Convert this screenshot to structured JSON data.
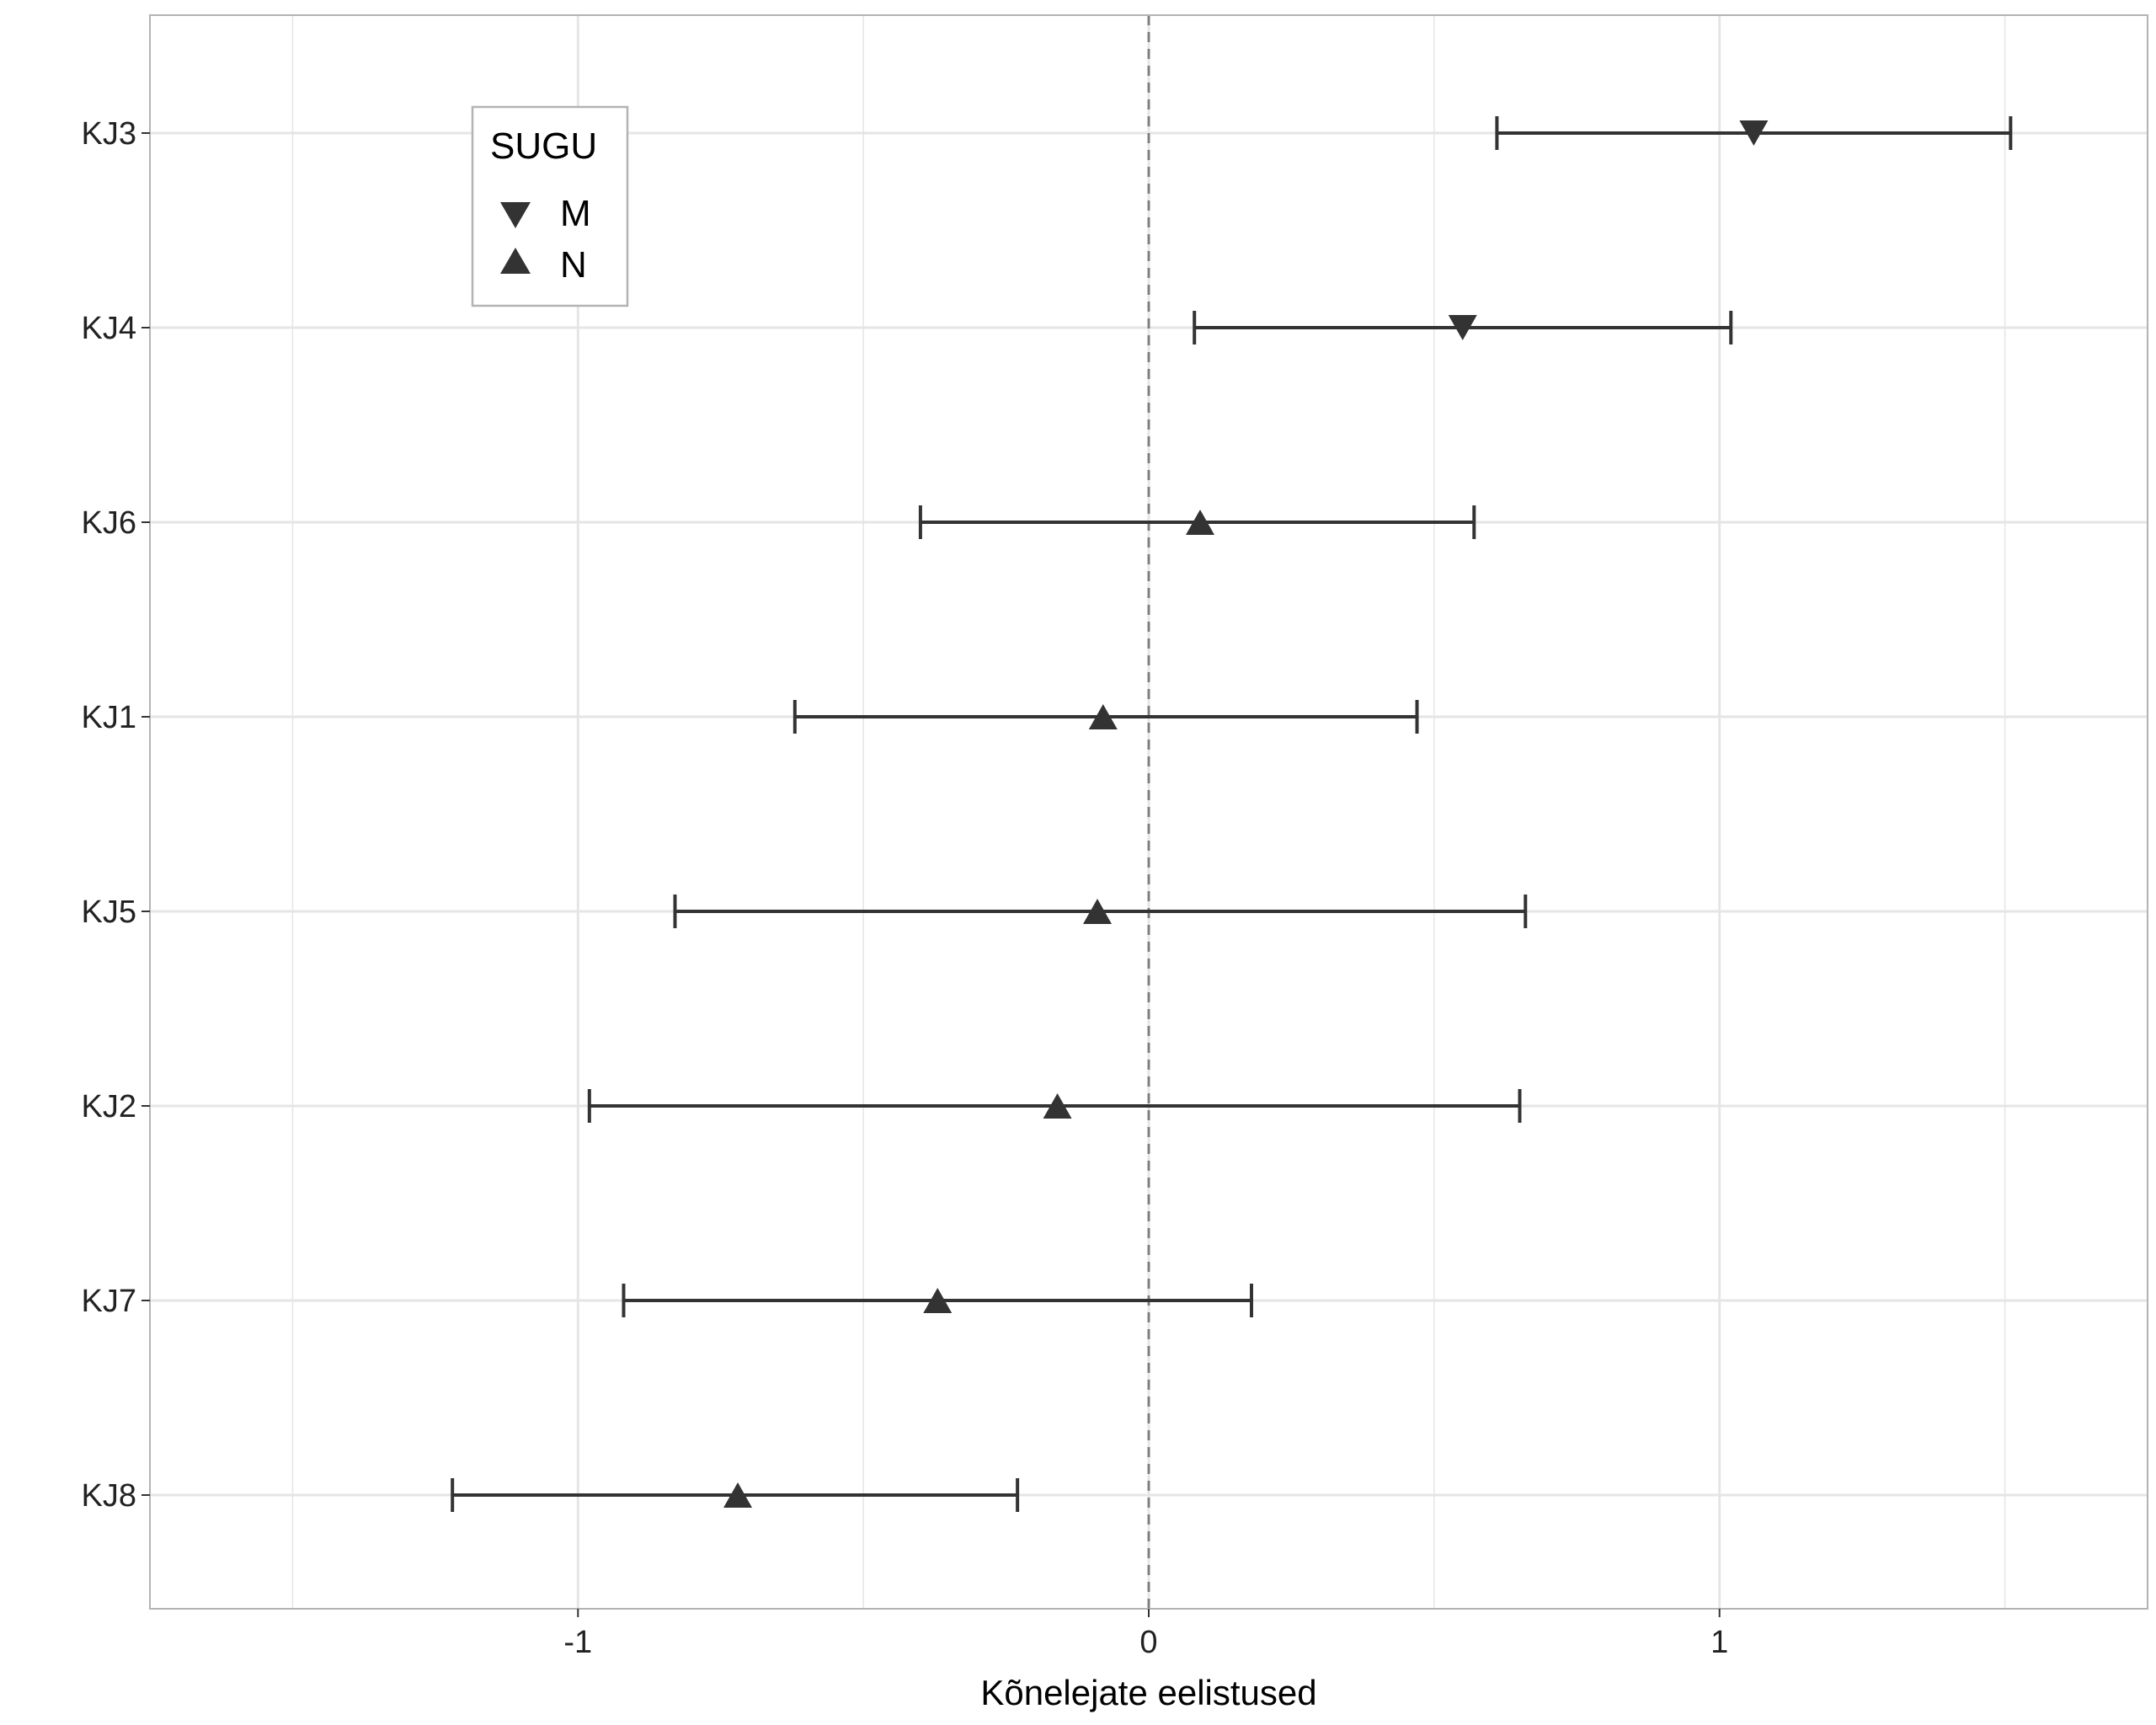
{
  "chart_data": {
    "type": "scatter",
    "subtype": "point-with-horizontal-error-bars",
    "title": "",
    "xlabel": "Kõnelejate eelistused",
    "ylabel": "",
    "xlim": [
      -1.75,
      1.75
    ],
    "x_ticks": [
      {
        "value": -1,
        "label": "-1"
      },
      {
        "value": 0,
        "label": "0"
      },
      {
        "value": 1,
        "label": "1"
      }
    ],
    "x_minor_gridlines": [
      -1.5,
      -0.5,
      0.5,
      1.5
    ],
    "reference_line": {
      "x": 0,
      "style": "dashed",
      "color": "#7f7f7f"
    },
    "grid": true,
    "categories": [
      "KJ3",
      "KJ4",
      "KJ6",
      "KJ1",
      "KJ5",
      "KJ2",
      "KJ7",
      "KJ8"
    ],
    "points": [
      {
        "label": "KJ3",
        "estimate": 1.06,
        "lower": 0.61,
        "upper": 1.51,
        "group": "M"
      },
      {
        "label": "KJ4",
        "estimate": 0.55,
        "lower": 0.08,
        "upper": 1.02,
        "group": "M"
      },
      {
        "label": "KJ6",
        "estimate": 0.09,
        "lower": -0.4,
        "upper": 0.57,
        "group": "N"
      },
      {
        "label": "KJ1",
        "estimate": -0.08,
        "lower": -0.62,
        "upper": 0.47,
        "group": "N"
      },
      {
        "label": "KJ5",
        "estimate": -0.09,
        "lower": -0.83,
        "upper": 0.66,
        "group": "N"
      },
      {
        "label": "KJ2",
        "estimate": -0.16,
        "lower": -0.98,
        "upper": 0.65,
        "group": "N"
      },
      {
        "label": "KJ7",
        "estimate": -0.37,
        "lower": -0.92,
        "upper": 0.18,
        "group": "N"
      },
      {
        "label": "KJ8",
        "estimate": -0.72,
        "lower": -1.22,
        "upper": -0.23,
        "group": "N"
      }
    ],
    "legend": {
      "title": "SUGU",
      "position": "top-left",
      "entries": [
        {
          "label": "M",
          "shape": "triangle-down-icon"
        },
        {
          "label": "N",
          "shape": "triangle-up-icon"
        }
      ]
    },
    "colors": {
      "marks": "#333333",
      "grid": "#e5e5e5",
      "panel_border": "#b3b3b3",
      "reference_line": "#7f7f7f"
    }
  }
}
